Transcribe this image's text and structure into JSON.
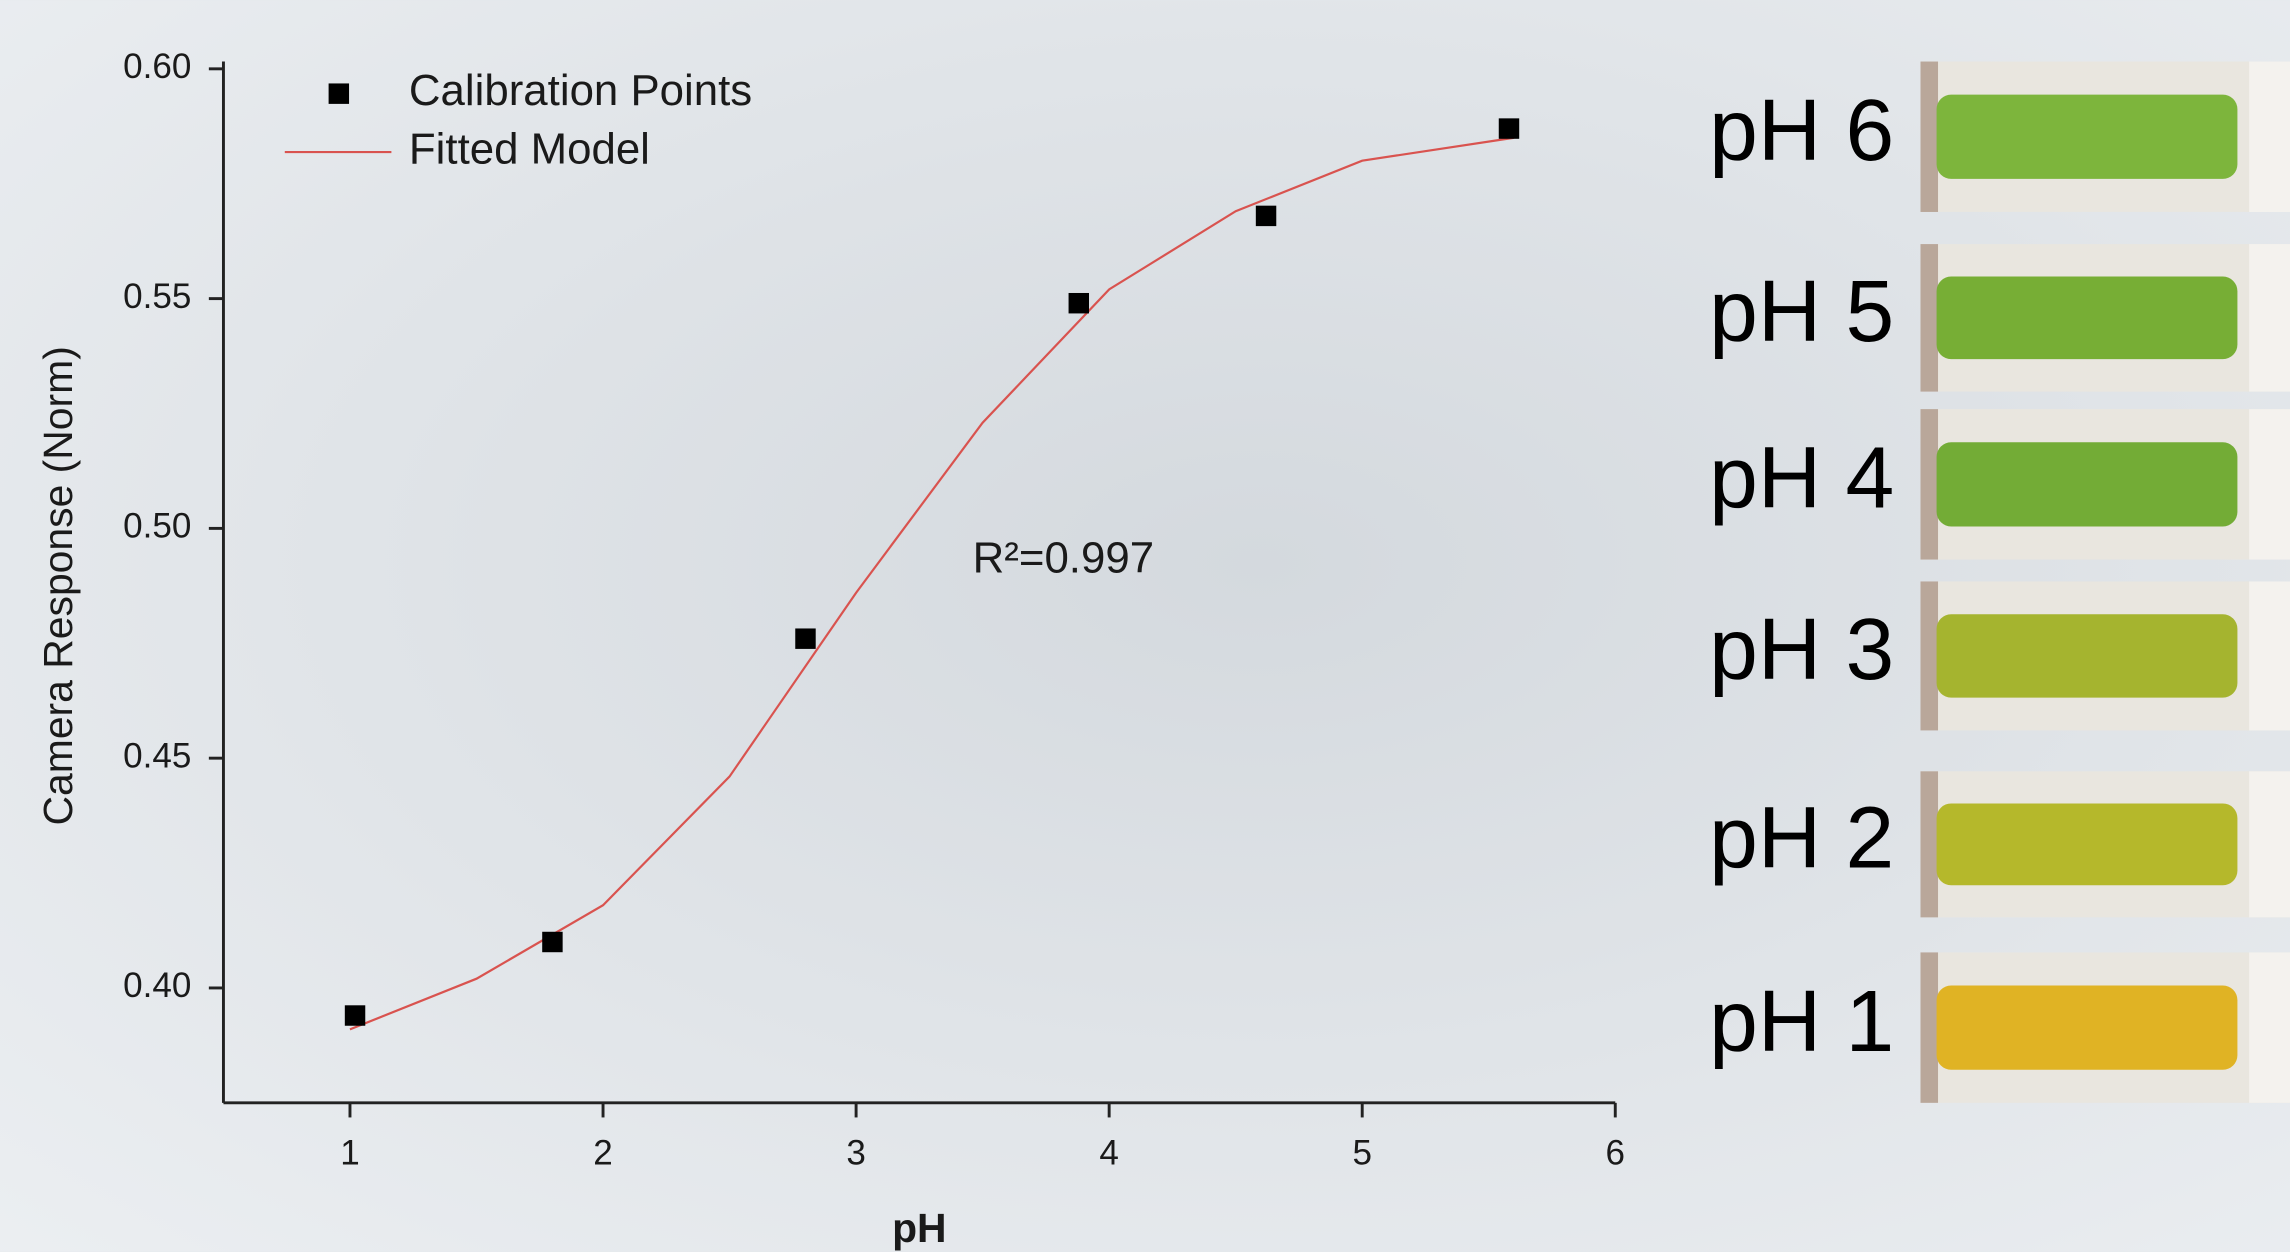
{
  "chart_data": {
    "type": "scatter",
    "xlabel": "pH",
    "ylabel": "Camera Response (Norm)",
    "annotation": "R²=0.997",
    "xlim": [
      0.5,
      6
    ],
    "ylim": [
      0.375,
      0.6
    ],
    "xticks": [
      1,
      2,
      3,
      4,
      5,
      6
    ],
    "yticks": [
      {
        "value": 0.4,
        "label": "0.40"
      },
      0.45,
      {
        "value": 0.5,
        "label": "0.50"
      },
      0.55,
      {
        "value": 0.6,
        "label": "0.60"
      }
    ],
    "series": [
      {
        "name": "Calibration Points",
        "type": "scatter",
        "color": "#000000",
        "x": [
          1.02,
          1.8,
          2.8,
          3.88,
          4.62,
          5.58
        ],
        "values": [
          0.394,
          0.41,
          0.476,
          0.549,
          0.568,
          0.587
        ]
      },
      {
        "name": "Fitted Model",
        "type": "line",
        "color": "#d9534f",
        "x": [
          1.0,
          1.5,
          2.0,
          2.5,
          3.0,
          3.5,
          4.0,
          4.5,
          5.0,
          5.6
        ],
        "values": [
          0.391,
          0.402,
          0.418,
          0.446,
          0.486,
          0.523,
          0.552,
          0.569,
          0.58,
          0.585
        ]
      }
    ]
  },
  "swatches": [
    {
      "label": "pH 6",
      "color": "#7db53c"
    },
    {
      "label": "pH 5",
      "color": "#77ae35"
    },
    {
      "label": "pH 4",
      "color": "#73ac36"
    },
    {
      "label": "pH 3",
      "color": "#a5b42f"
    },
    {
      "label": "pH 2",
      "color": "#b5b82b"
    },
    {
      "label": "pH 1",
      "color": "#e0b324"
    }
  ]
}
